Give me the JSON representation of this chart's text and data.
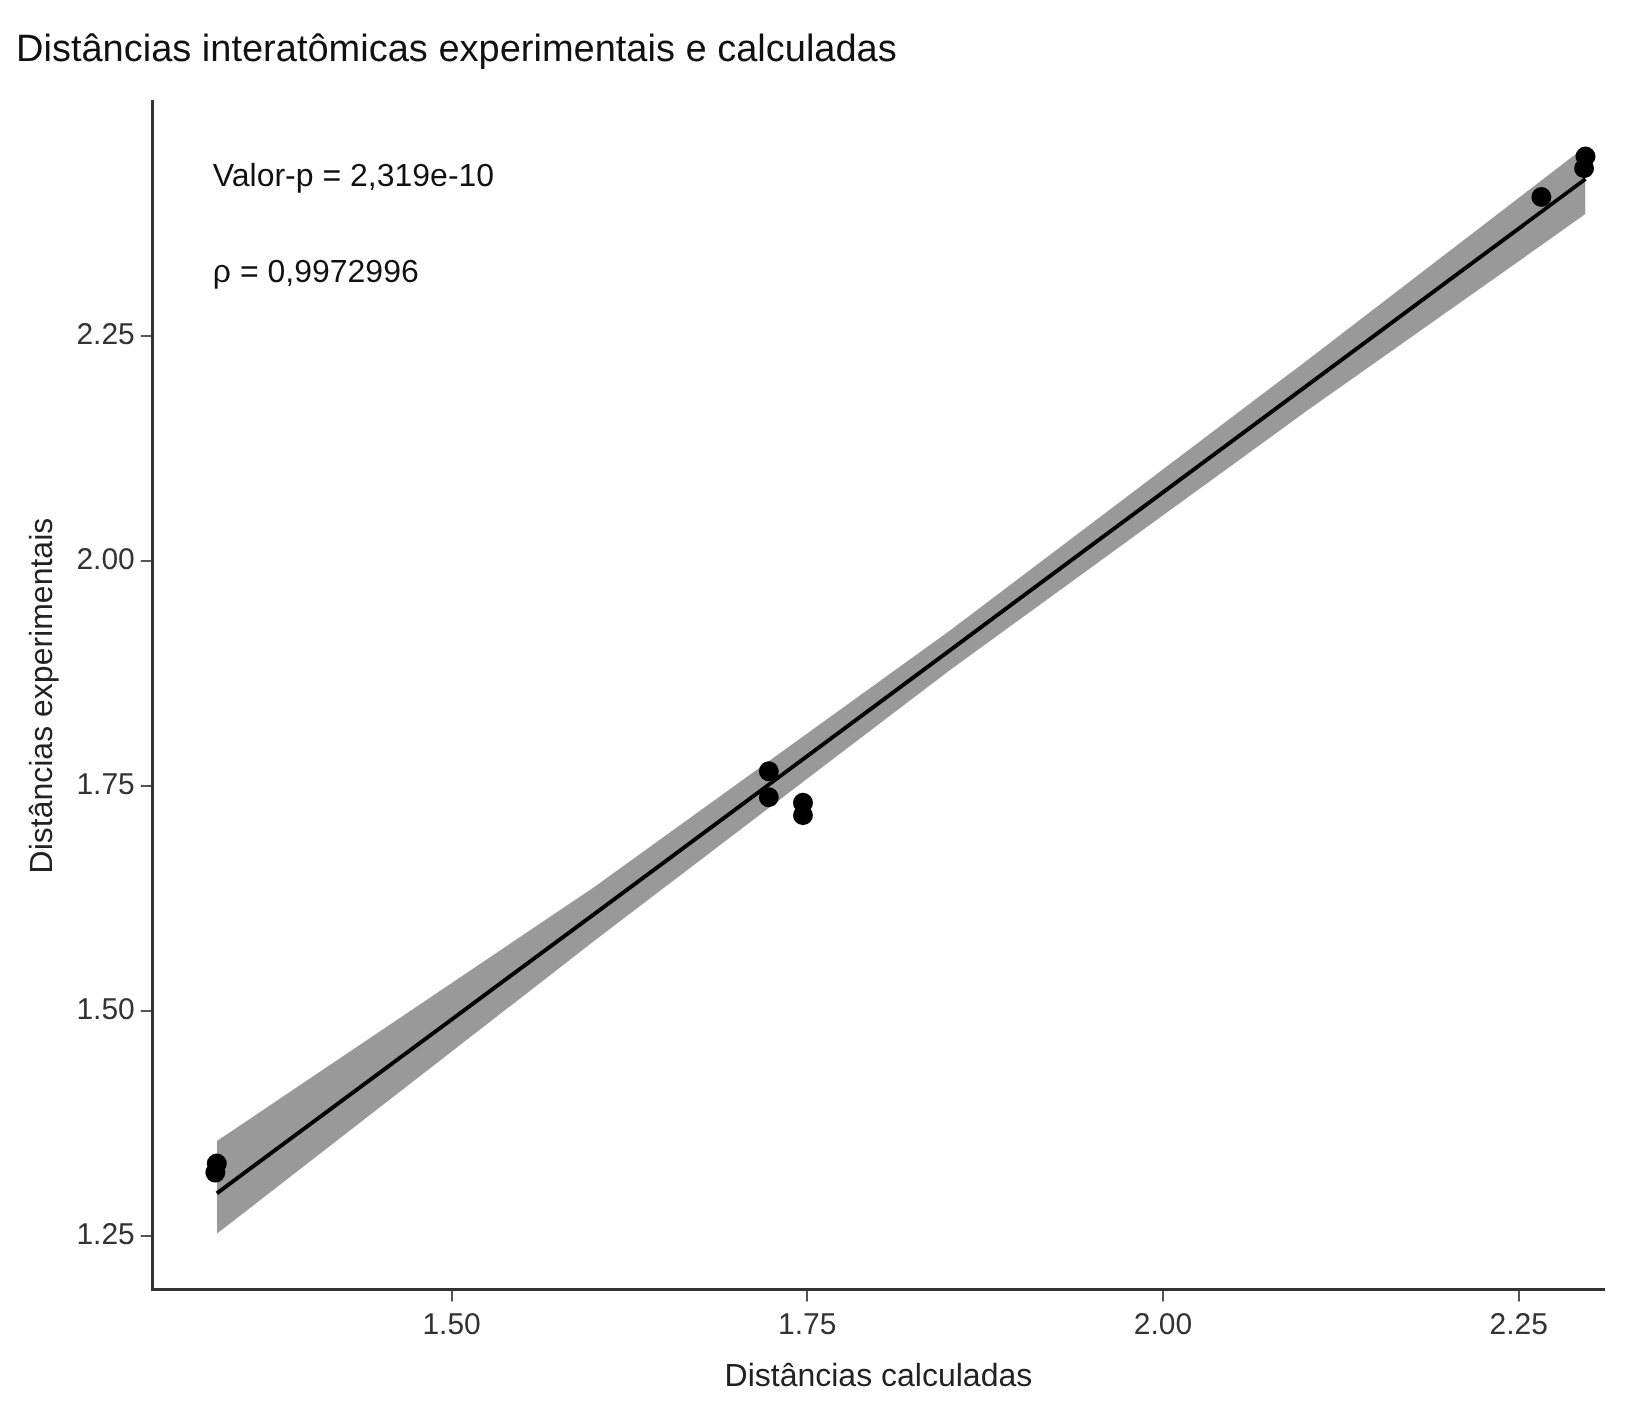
{
  "chart_data": {
    "type": "scatter",
    "title": "Distâncias interatômicas experimentais e calculadas",
    "xlabel": "Distâncias calculadas",
    "ylabel": "Distâncias experimentais",
    "annotations": [
      "Valor-p = 2,319e-10",
      "ρ = 0,9972996"
    ],
    "xlim": [
      1.29,
      2.31
    ],
    "ylim": [
      1.19,
      2.51
    ],
    "xticks": [
      {
        "value": 1.5,
        "label": "1.50"
      },
      {
        "value": 1.75,
        "label": "1.75"
      },
      {
        "value": 2,
        "label": "2.00"
      },
      {
        "value": 2.25,
        "label": "2.25"
      }
    ],
    "yticks": [
      {
        "value": 1.25,
        "label": "1.25"
      },
      {
        "value": 1.5,
        "label": "1.50"
      },
      {
        "value": 1.75,
        "label": "1.75"
      },
      {
        "value": 2,
        "label": "2.00"
      },
      {
        "value": 2.25,
        "label": "2.25"
      }
    ],
    "grid": false,
    "legend": false,
    "marker": "circle",
    "series": [
      {
        "color": "#000000",
        "x": [
          1.335,
          1.334,
          1.723,
          1.723,
          1.747,
          1.747,
          2.266,
          2.297,
          2.296
        ],
        "values": [
          1.33,
          1.32,
          1.766,
          1.737,
          1.731,
          1.717,
          2.404,
          2.449,
          2.436
        ]
      },
      {
        "type": "line",
        "color": "#000000",
        "marker": "none",
        "x": [
          1.335,
          1.6,
          1.85,
          2.1,
          2.297
        ],
        "values": [
          1.297,
          1.607,
          1.9,
          2.193,
          2.424
        ],
        "lower": [
          1.252,
          1.577,
          1.878,
          2.165,
          2.385
        ],
        "upper": [
          1.355,
          1.637,
          1.922,
          2.221,
          2.46
        ]
      }
    ]
  }
}
